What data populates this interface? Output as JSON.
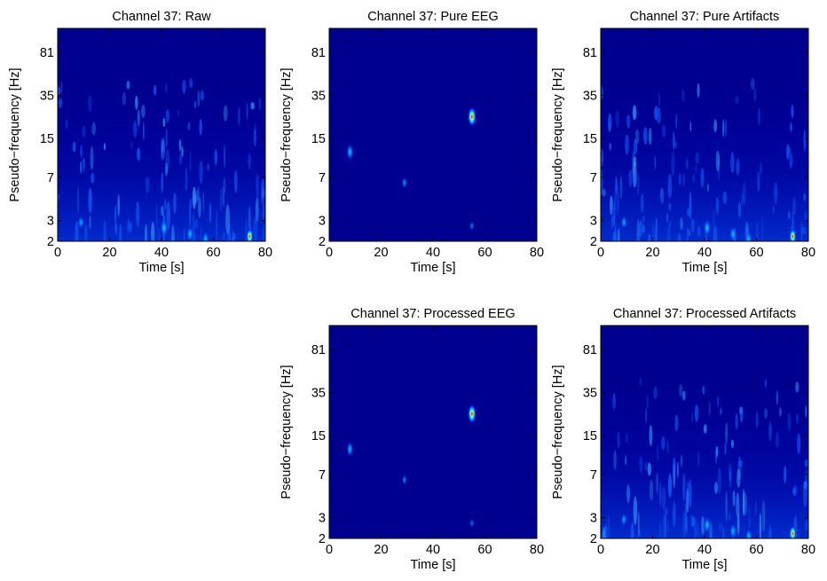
{
  "figure": {
    "background": "#ffffff",
    "colormap": "jet",
    "base_color": "#00008f"
  },
  "chart_data": [
    {
      "type": "heatmap",
      "title": "Channel 37: Raw",
      "xlabel": "Time [s]",
      "ylabel": "Pseudo−frequency [Hz]",
      "xlim": [
        0,
        80
      ],
      "xticks": [
        0,
        20,
        40,
        60,
        80
      ],
      "xtick_labels": [
        "0",
        "20",
        "40",
        "60",
        "80"
      ],
      "yscale": "log",
      "yticks": [
        2,
        3,
        7,
        15,
        35,
        81
      ],
      "ytick_labels": [
        "2",
        "3",
        "7",
        "15",
        "35",
        "81"
      ],
      "grid": false,
      "colorbar": false,
      "content": "artifact-rich: broadband low-frequency energy",
      "blobs": [
        {
          "time": 74,
          "freq": 2.2,
          "intensity": 0.55
        },
        {
          "time": 41,
          "freq": 2.6,
          "intensity": 0.32
        },
        {
          "time": 51,
          "freq": 2.3,
          "intensity": 0.28
        },
        {
          "time": 57,
          "freq": 2.1,
          "intensity": 0.26
        },
        {
          "time": 9,
          "freq": 2.9,
          "intensity": 0.22
        }
      ]
    },
    {
      "type": "heatmap",
      "title": "Channel 37: Pure EEG",
      "xlabel": "Time [s]",
      "ylabel": "Pseudo−frequency [Hz]",
      "xlim": [
        0,
        80
      ],
      "xticks": [
        0,
        20,
        40,
        60,
        80
      ],
      "xtick_labels": [
        "0",
        "20",
        "40",
        "60",
        "80"
      ],
      "yscale": "log",
      "yticks": [
        2,
        3,
        7,
        15,
        35,
        81
      ],
      "ytick_labels": [
        "2",
        "3",
        "7",
        "15",
        "35",
        "81"
      ],
      "grid": false,
      "colorbar": false,
      "content": "sparse",
      "blobs": [
        {
          "time": 55,
          "freq": 23,
          "intensity": 1.0
        },
        {
          "time": 8,
          "freq": 11.5,
          "intensity": 0.3
        },
        {
          "time": 29,
          "freq": 6.3,
          "intensity": 0.18
        },
        {
          "time": 55,
          "freq": 2.7,
          "intensity": 0.12
        }
      ]
    },
    {
      "type": "heatmap",
      "title": "Channel 37: Pure Artifacts",
      "xlabel": "Time [s]",
      "ylabel": "Pseudo−frequency [Hz]",
      "xlim": [
        0,
        80
      ],
      "xticks": [
        0,
        20,
        40,
        60,
        80
      ],
      "xtick_labels": [
        "0",
        "20",
        "40",
        "60",
        "80"
      ],
      "yscale": "log",
      "yticks": [
        2,
        3,
        7,
        15,
        35,
        81
      ],
      "ytick_labels": [
        "2",
        "3",
        "7",
        "15",
        "35",
        "81"
      ],
      "grid": false,
      "colorbar": false,
      "content": "artifact-rich: broadband low-frequency energy",
      "blobs": [
        {
          "time": 74,
          "freq": 2.2,
          "intensity": 0.55
        },
        {
          "time": 41,
          "freq": 2.6,
          "intensity": 0.32
        },
        {
          "time": 51,
          "freq": 2.3,
          "intensity": 0.28
        },
        {
          "time": 57,
          "freq": 2.1,
          "intensity": 0.26
        },
        {
          "time": 9,
          "freq": 2.9,
          "intensity": 0.22
        }
      ]
    },
    {
      "type": "heatmap",
      "title": "Channel 37: Processed EEG",
      "xlabel": "Time [s]",
      "ylabel": "Pseudo−frequency [Hz]",
      "xlim": [
        0,
        80
      ],
      "xticks": [
        0,
        20,
        40,
        60,
        80
      ],
      "xtick_labels": [
        "0",
        "20",
        "40",
        "60",
        "80"
      ],
      "yscale": "log",
      "yticks": [
        2,
        3,
        7,
        15,
        35,
        81
      ],
      "ytick_labels": [
        "2",
        "3",
        "7",
        "15",
        "35",
        "81"
      ],
      "grid": false,
      "colorbar": false,
      "content": "sparse",
      "blobs": [
        {
          "time": 55,
          "freq": 23,
          "intensity": 0.95
        },
        {
          "time": 8,
          "freq": 11.5,
          "intensity": 0.28
        },
        {
          "time": 29,
          "freq": 6.3,
          "intensity": 0.15
        },
        {
          "time": 55,
          "freq": 2.7,
          "intensity": 0.1
        }
      ]
    },
    {
      "type": "heatmap",
      "title": "Channel 37: Processed Artifacts",
      "xlabel": "Time [s]",
      "ylabel": "Pseudo−frequency [Hz]",
      "xlim": [
        0,
        80
      ],
      "xticks": [
        0,
        20,
        40,
        60,
        80
      ],
      "xtick_labels": [
        "0",
        "20",
        "40",
        "60",
        "80"
      ],
      "yscale": "log",
      "yticks": [
        2,
        3,
        7,
        15,
        35,
        81
      ],
      "ytick_labels": [
        "2",
        "3",
        "7",
        "15",
        "35",
        "81"
      ],
      "grid": false,
      "colorbar": false,
      "content": "artifact-rich: broadband low-frequency energy",
      "blobs": [
        {
          "time": 74,
          "freq": 2.2,
          "intensity": 0.55
        },
        {
          "time": 41,
          "freq": 2.6,
          "intensity": 0.3
        },
        {
          "time": 51,
          "freq": 2.3,
          "intensity": 0.27
        },
        {
          "time": 57,
          "freq": 2.1,
          "intensity": 0.25
        },
        {
          "time": 9,
          "freq": 2.9,
          "intensity": 0.2
        }
      ]
    }
  ]
}
